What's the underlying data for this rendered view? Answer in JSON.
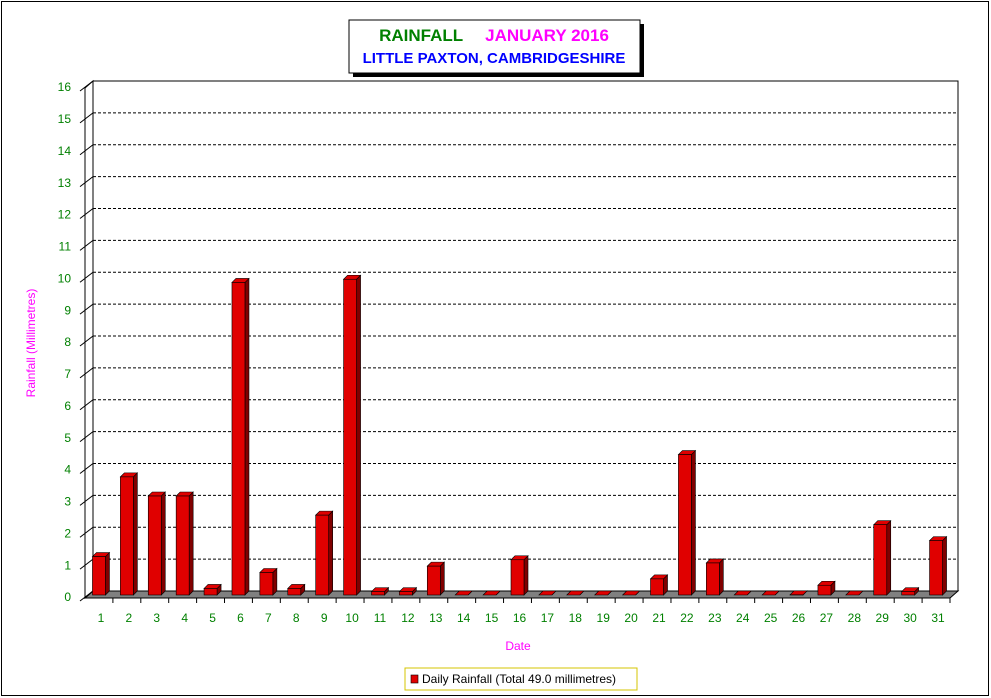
{
  "chart_data": {
    "type": "bar",
    "title": "RAINFALL",
    "period": "JANUARY 2016",
    "subtitle": "LITTLE PAXTON, CAMBRIDGESHIRE",
    "x_label": "Date",
    "y_label": "Rainfall  (Millimetres)",
    "categories": [
      "1",
      "2",
      "3",
      "4",
      "5",
      "6",
      "7",
      "8",
      "9",
      "10",
      "11",
      "12",
      "13",
      "14",
      "15",
      "16",
      "17",
      "18",
      "19",
      "20",
      "21",
      "22",
      "23",
      "24",
      "25",
      "26",
      "27",
      "28",
      "29",
      "30",
      "31"
    ],
    "series": [
      {
        "name": "Daily Rainfall (Total 49.0 millimetres)",
        "color": "#e00000",
        "values": [
          1.3,
          3.8,
          3.2,
          3.2,
          0.3,
          9.9,
          0.8,
          0.3,
          2.6,
          10.0,
          0.2,
          0.2,
          1.0,
          0,
          0,
          1.2,
          0,
          0,
          0,
          0,
          0.6,
          4.5,
          1.1,
          0,
          0,
          0.1,
          0.4,
          0,
          2.3,
          0.2,
          1.8
        ]
      }
    ],
    "ylim": [
      0,
      16
    ],
    "yticks": [
      0,
      1,
      2,
      3,
      4,
      5,
      6,
      7,
      8,
      9,
      10,
      11,
      12,
      13,
      14,
      15,
      16
    ],
    "grid": true
  }
}
